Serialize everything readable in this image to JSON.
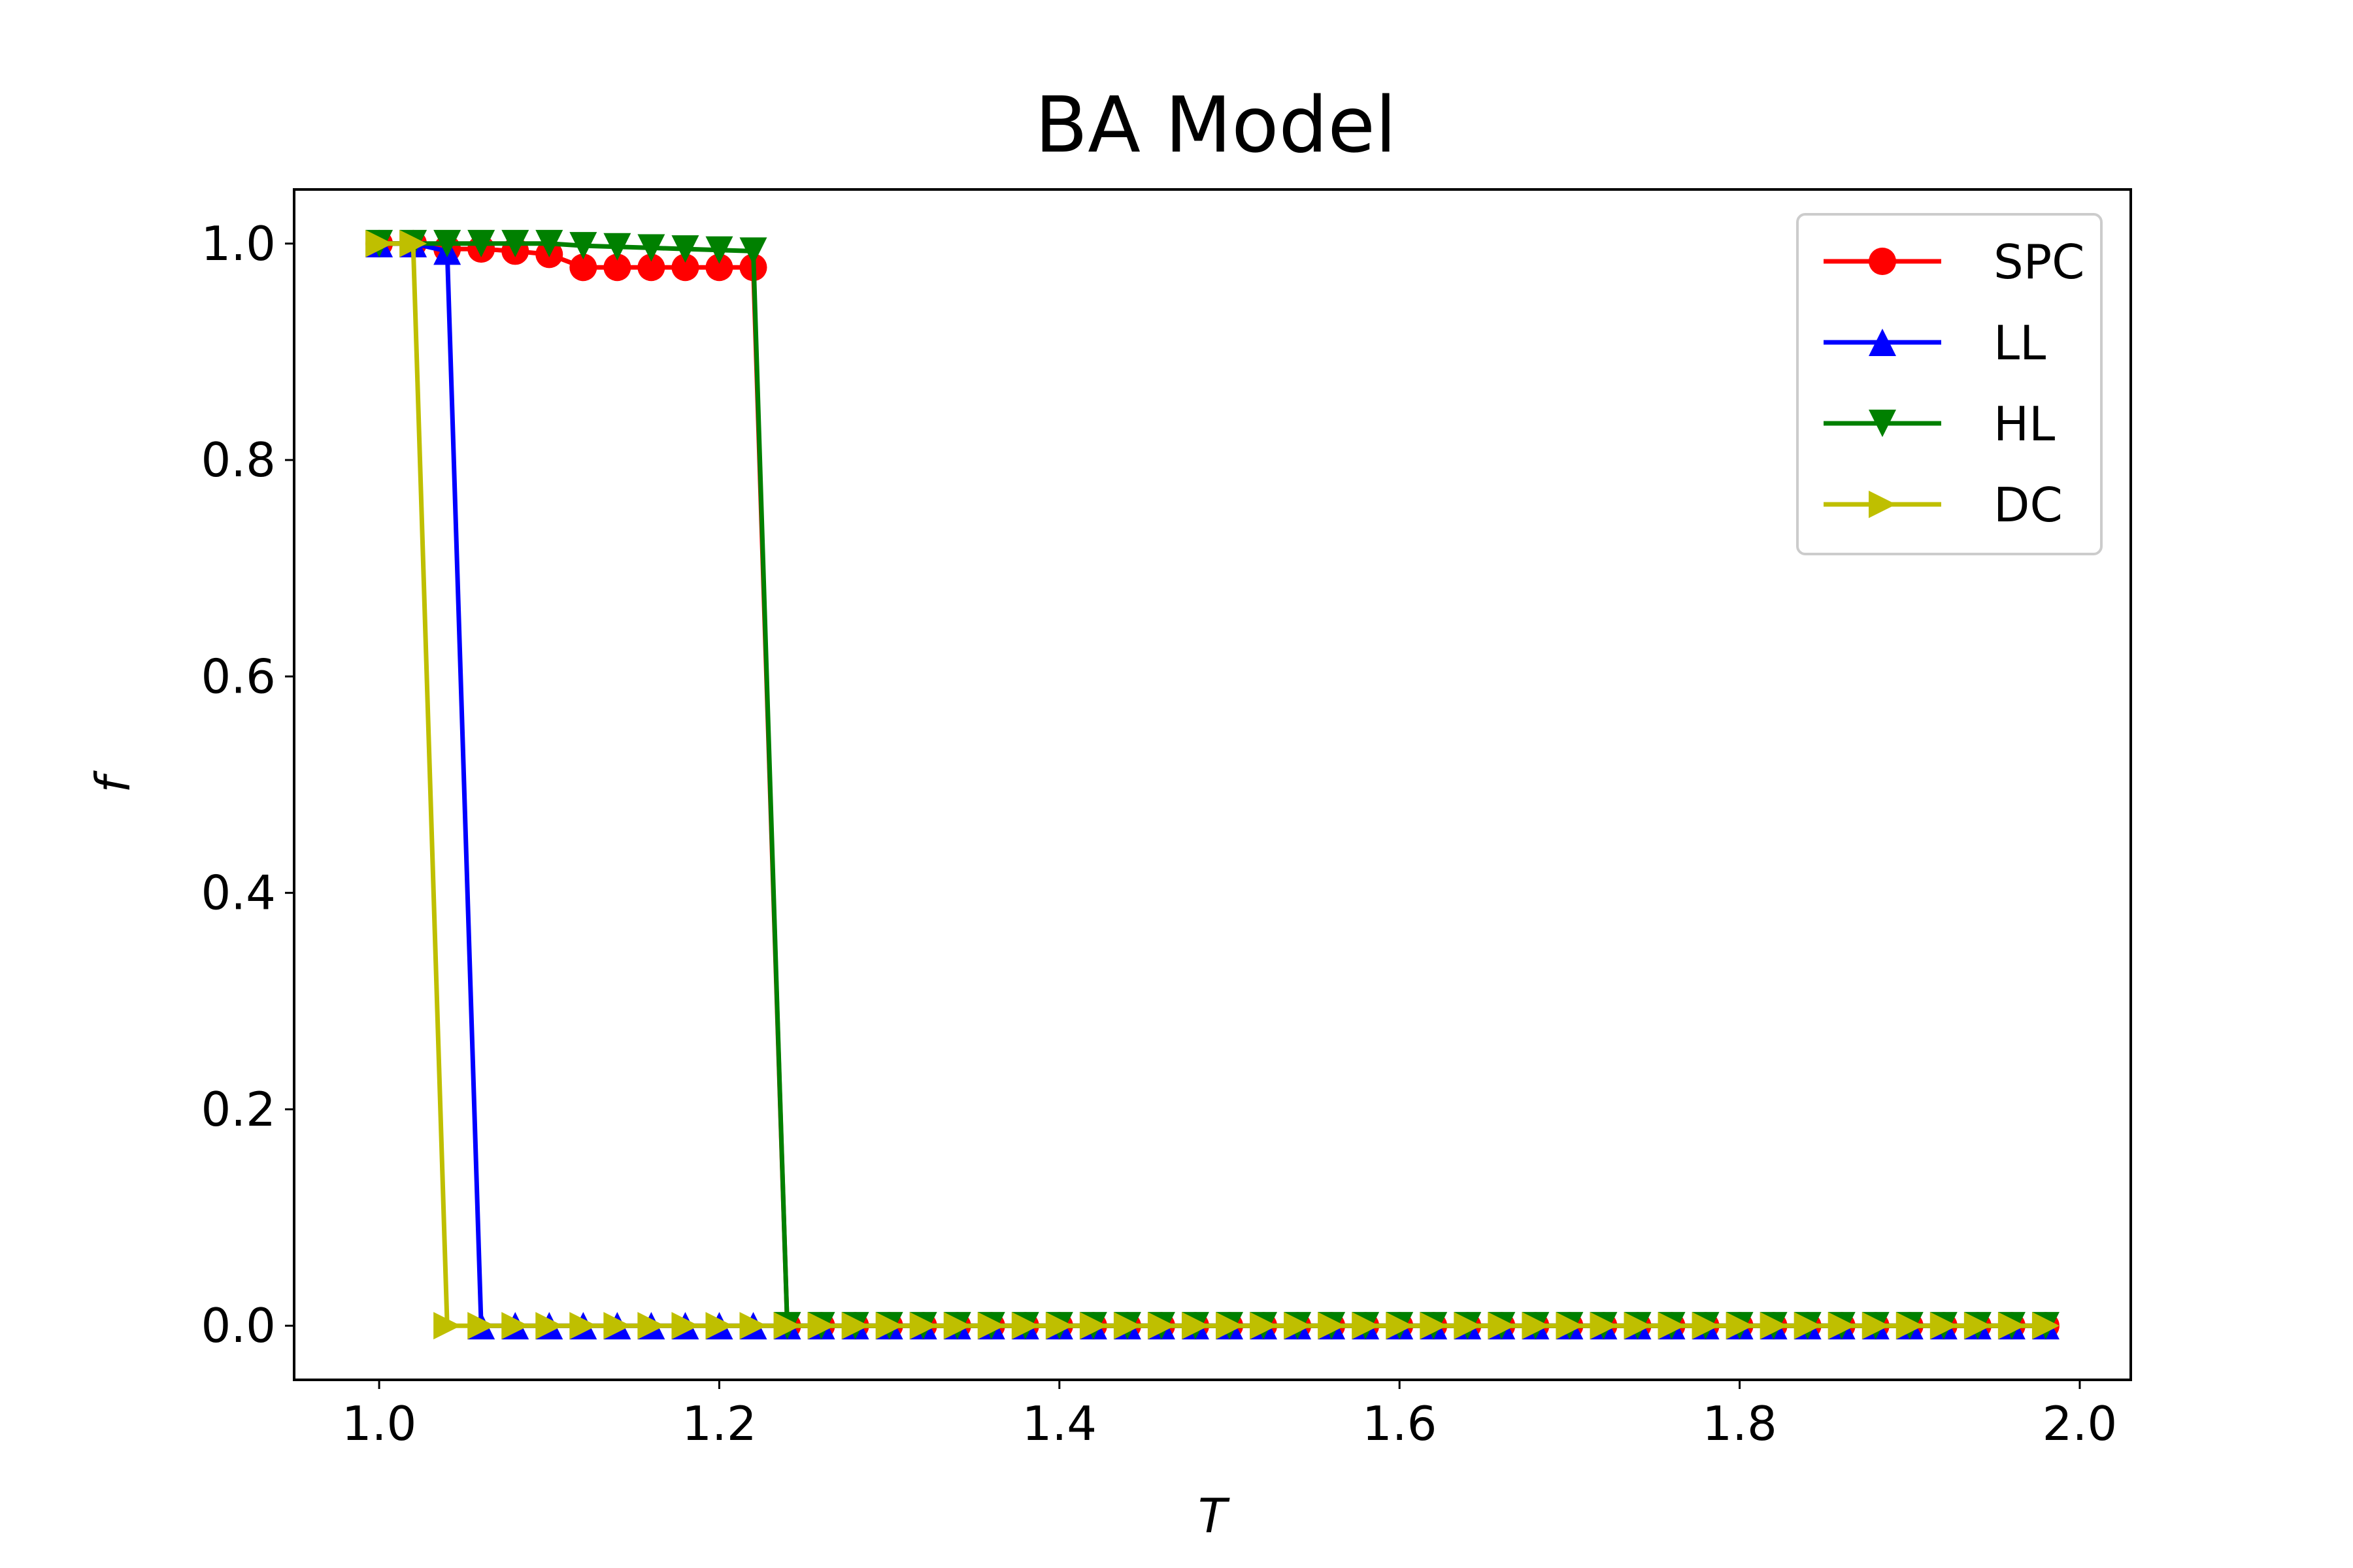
{
  "chart_data": {
    "type": "line",
    "title": "BA Model",
    "xlabel": "T",
    "ylabel": "f",
    "xlim": [
      0.95,
      2.03
    ],
    "ylim": [
      -0.05,
      1.05
    ],
    "xticks": [
      "1.0",
      "1.2",
      "1.4",
      "1.6",
      "1.8",
      "2.0"
    ],
    "yticks": [
      "0.0",
      "0.2",
      "0.4",
      "0.6",
      "0.8",
      "1.0"
    ],
    "grid": false,
    "legend_position": "top-right",
    "x": [
      1.0,
      1.02,
      1.04,
      1.06,
      1.08,
      1.1,
      1.12,
      1.14,
      1.16,
      1.18,
      1.2,
      1.22,
      1.24,
      1.26,
      1.28,
      1.3,
      1.32,
      1.34,
      1.36,
      1.38,
      1.4,
      1.42,
      1.44,
      1.46,
      1.48,
      1.5,
      1.52,
      1.54,
      1.56,
      1.58,
      1.6,
      1.62,
      1.64,
      1.66,
      1.68,
      1.7,
      1.72,
      1.74,
      1.76,
      1.78,
      1.8,
      1.82,
      1.84,
      1.86,
      1.88,
      1.9,
      1.92,
      1.94,
      1.96,
      1.98
    ],
    "series": [
      {
        "name": "SPC",
        "color": "#ff0000",
        "marker": "circle",
        "values": [
          1.0,
          1.0,
          0.995,
          0.995,
          0.993,
          0.99,
          0.978,
          0.978,
          0.978,
          0.978,
          0.978,
          0.978,
          0.0,
          0.0,
          0.0,
          0.0,
          0.0,
          0.0,
          0.0,
          0.0,
          0.0,
          0.0,
          0.0,
          0.0,
          0.0,
          0.0,
          0.0,
          0.0,
          0.0,
          0.0,
          0.0,
          0.0,
          0.0,
          0.0,
          0.0,
          0.0,
          0.0,
          0.0,
          0.0,
          0.0,
          0.0,
          0.0,
          0.0,
          0.0,
          0.0,
          0.0,
          0.0,
          0.0,
          0.0,
          0.0
        ]
      },
      {
        "name": "LL",
        "color": "#0000ff",
        "marker": "triangle-up",
        "values": [
          1.0,
          1.0,
          0.993,
          0.0,
          0.0,
          0.0,
          0.0,
          0.0,
          0.0,
          0.0,
          0.0,
          0.0,
          0.0,
          0.0,
          0.0,
          0.0,
          0.0,
          0.0,
          0.0,
          0.0,
          0.0,
          0.0,
          0.0,
          0.0,
          0.0,
          0.0,
          0.0,
          0.0,
          0.0,
          0.0,
          0.0,
          0.0,
          0.0,
          0.0,
          0.0,
          0.0,
          0.0,
          0.0,
          0.0,
          0.0,
          0.0,
          0.0,
          0.0,
          0.0,
          0.0,
          0.0,
          0.0,
          0.0,
          0.0,
          0.0
        ]
      },
      {
        "name": "HL",
        "color": "#008000",
        "marker": "triangle-down",
        "values": [
          1.0,
          1.0,
          1.0,
          1.0,
          1.0,
          1.0,
          0.998,
          0.997,
          0.996,
          0.995,
          0.994,
          0.993,
          0.0,
          0.0,
          0.0,
          0.0,
          0.0,
          0.0,
          0.0,
          0.0,
          0.0,
          0.0,
          0.0,
          0.0,
          0.0,
          0.0,
          0.0,
          0.0,
          0.0,
          0.0,
          0.0,
          0.0,
          0.0,
          0.0,
          0.0,
          0.0,
          0.0,
          0.0,
          0.0,
          0.0,
          0.0,
          0.0,
          0.0,
          0.0,
          0.0,
          0.0,
          0.0,
          0.0,
          0.0,
          0.0
        ]
      },
      {
        "name": "DC",
        "color": "#bfbf00",
        "marker": "triangle-right",
        "values": [
          1.0,
          1.0,
          0.0,
          0.0,
          0.0,
          0.0,
          0.0,
          0.0,
          0.0,
          0.0,
          0.0,
          0.0,
          0.0,
          0.0,
          0.0,
          0.0,
          0.0,
          0.0,
          0.0,
          0.0,
          0.0,
          0.0,
          0.0,
          0.0,
          0.0,
          0.0,
          0.0,
          0.0,
          0.0,
          0.0,
          0.0,
          0.0,
          0.0,
          0.0,
          0.0,
          0.0,
          0.0,
          0.0,
          0.0,
          0.0,
          0.0,
          0.0,
          0.0,
          0.0,
          0.0,
          0.0,
          0.0,
          0.0,
          0.0,
          0.0
        ]
      }
    ]
  }
}
